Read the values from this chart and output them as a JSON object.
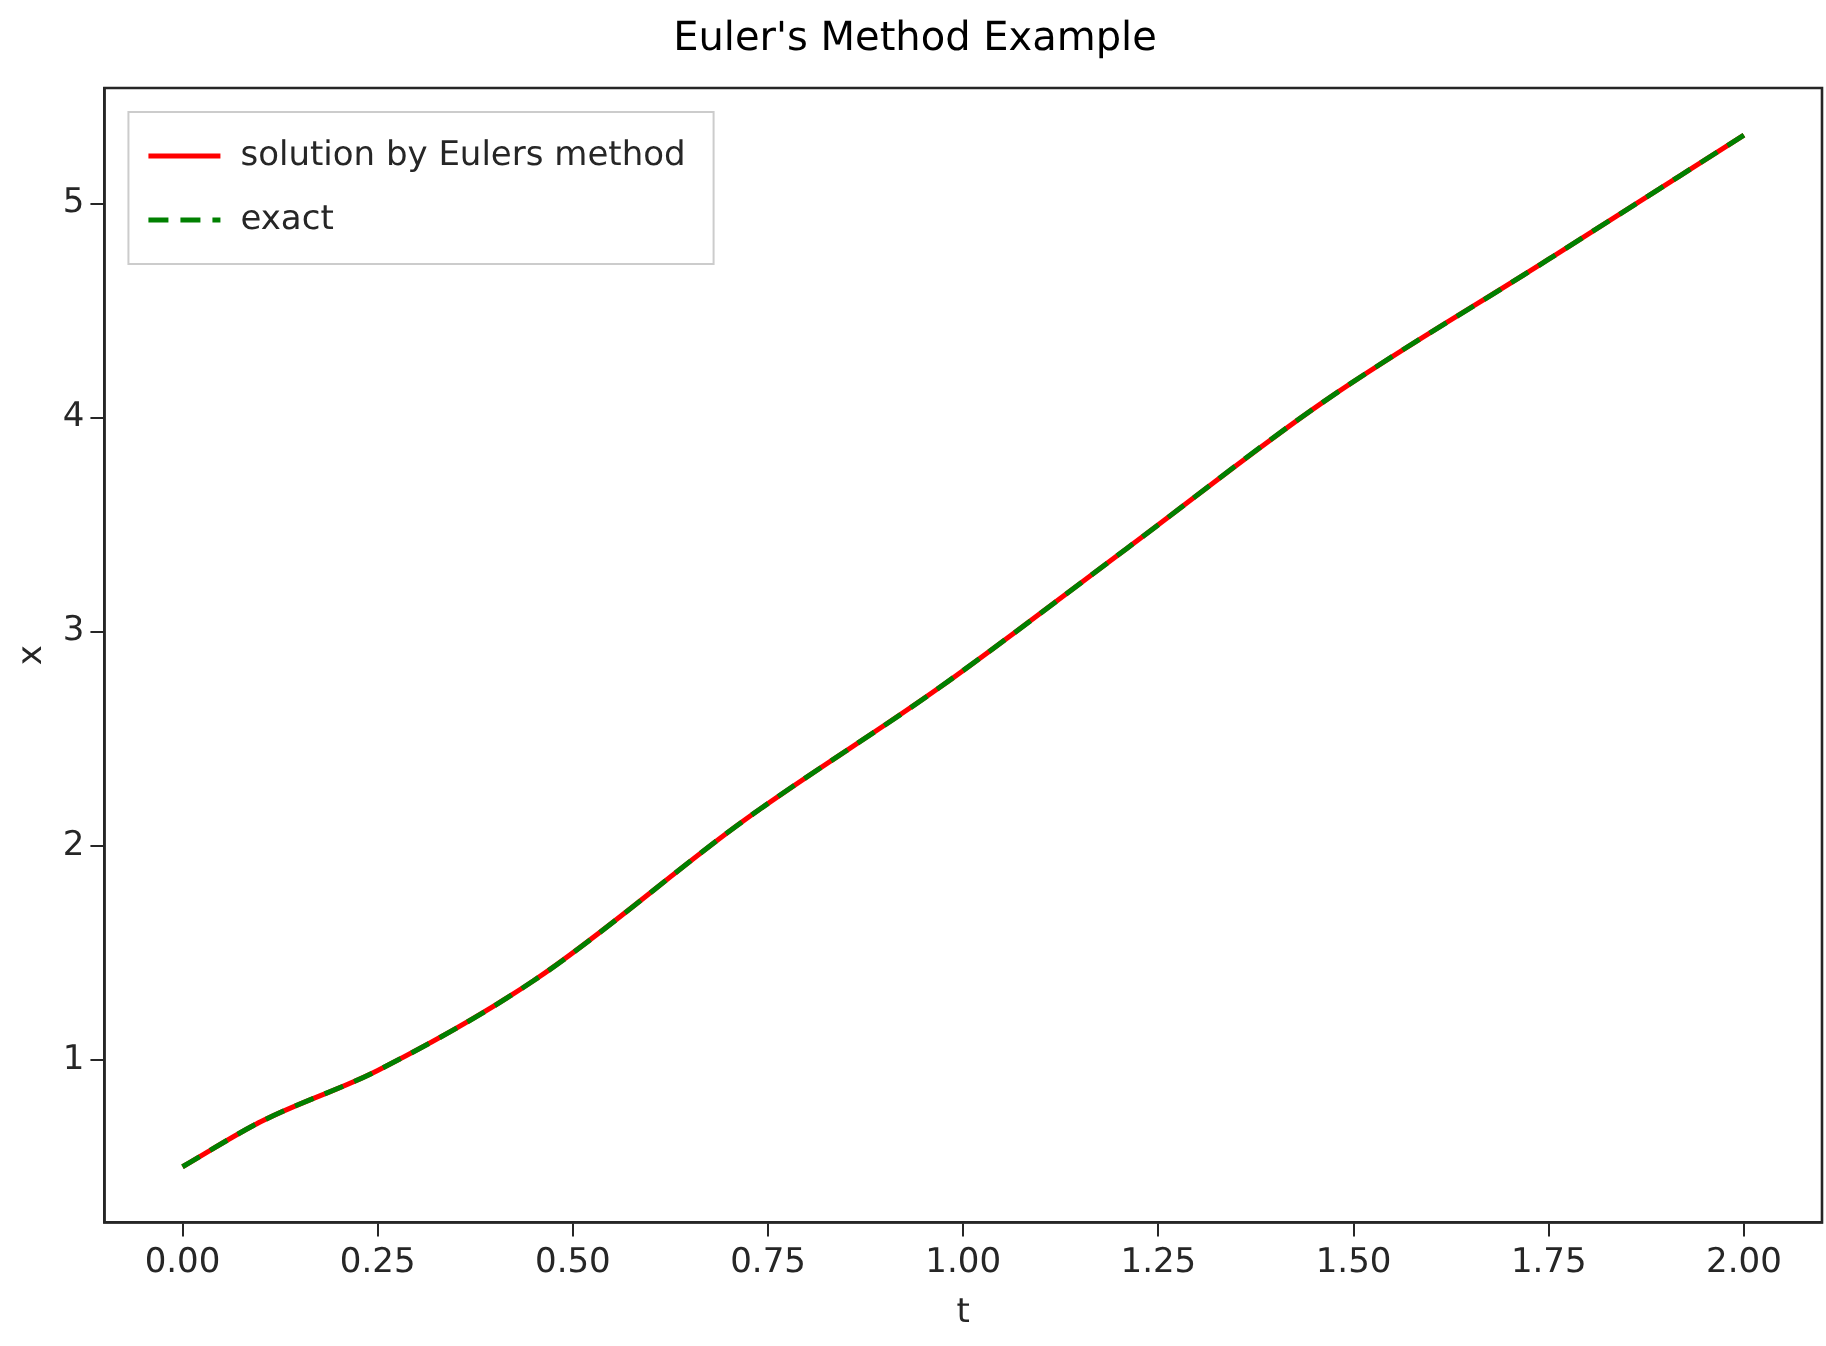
{
  "chart_data": {
    "type": "line",
    "title": "Euler's Method Example",
    "xlabel": "t",
    "ylabel": "x",
    "x": [
      0,
      0.1,
      0.25,
      0.45,
      0.72,
      0.97,
      1.21,
      1.46,
      1.75,
      2.0
    ],
    "series": [
      {
        "name": "solution by Eulers method",
        "color": "#ff0000",
        "line_style": "solid",
        "values": [
          0.5,
          0.71,
          0.95,
          1.37,
          2.12,
          2.74,
          3.39,
          4.07,
          4.74,
          5.32
        ]
      },
      {
        "name": "exact",
        "color": "#008000",
        "line_style": "dashed",
        "values": [
          0.5,
          0.71,
          0.95,
          1.37,
          2.12,
          2.74,
          3.39,
          4.07,
          4.74,
          5.32
        ]
      }
    ],
    "xlim": [
      -0.1,
      2.1
    ],
    "xticks": [
      {
        "value": 0,
        "label": "0.00"
      },
      {
        "value": 0.25,
        "label": "0.25"
      },
      {
        "value": 0.5,
        "label": "0.50"
      },
      {
        "value": 0.75,
        "label": "0.75"
      },
      {
        "value": 1,
        "label": "1.00"
      },
      {
        "value": 1.25,
        "label": "1.25"
      },
      {
        "value": 1.5,
        "label": "1.50"
      },
      {
        "value": 1.75,
        "label": "1.75"
      },
      {
        "value": 2,
        "label": "2.00"
      }
    ],
    "ylim": [
      0.24,
      5.54
    ],
    "yticks": [
      1,
      2,
      3,
      4,
      5
    ],
    "legend": "top left",
    "marker": "none"
  }
}
